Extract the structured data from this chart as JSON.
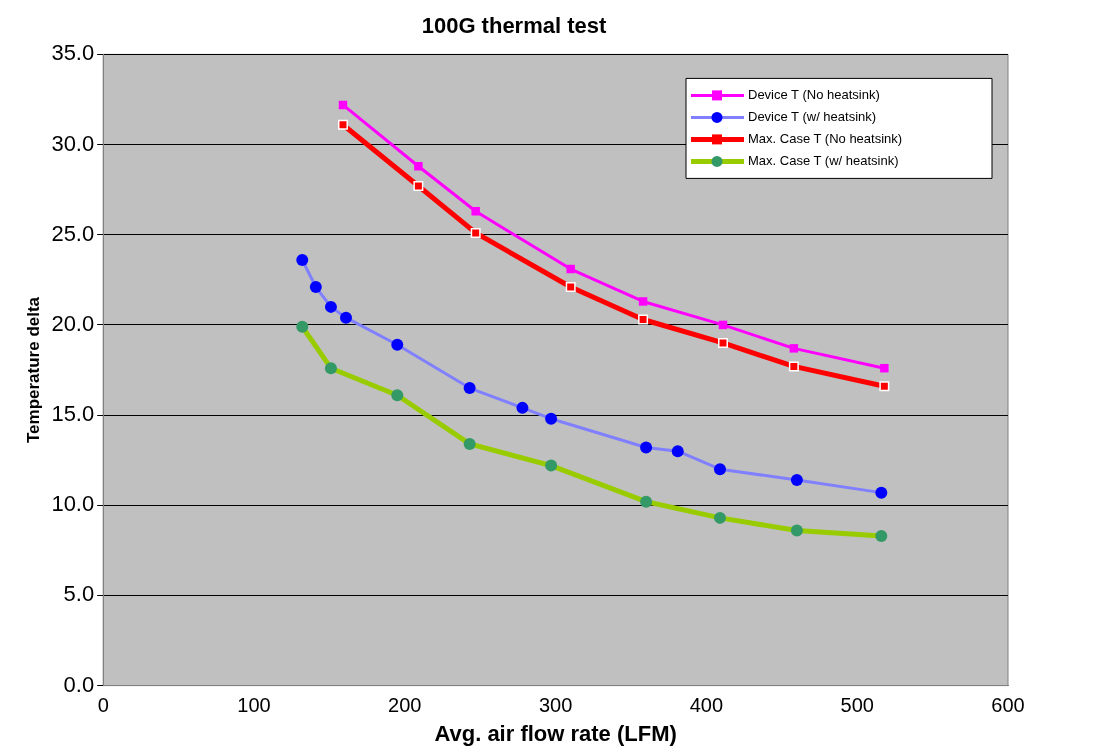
{
  "chart_data": {
    "type": "line",
    "title": "100G thermal test",
    "xlabel": "Avg. air flow rate (LFM)",
    "ylabel": "Temperature delta",
    "xlim": [
      0,
      600
    ],
    "xticks": [
      0,
      100,
      200,
      300,
      400,
      500,
      600
    ],
    "ylim": [
      0,
      35
    ],
    "yticks": [
      {
        "value": 0,
        "label": "0.0"
      },
      {
        "value": 5,
        "label": "5.0"
      },
      {
        "value": 10,
        "label": "10.0"
      },
      {
        "value": 15,
        "label": "15.0"
      },
      {
        "value": 20,
        "label": "20.0"
      },
      {
        "value": 25,
        "label": "25.0"
      },
      {
        "value": 30,
        "label": "30.0"
      },
      {
        "value": 35,
        "label": "35.0"
      }
    ],
    "grid": "y",
    "legend": "top right",
    "line_style": "solid",
    "series": [
      {
        "name": "Device T (No heatsink)",
        "color": "#ff00ff",
        "marker": "square",
        "x": [
          159,
          209,
          247,
          310,
          358,
          411,
          458,
          518
        ],
        "values": [
          32.2,
          28.8,
          26.3,
          23.1,
          21.3,
          20.0,
          18.7,
          17.6
        ]
      },
      {
        "name": "Device T (w/ heatsink)",
        "color": "#0000ff",
        "marker": "circle",
        "x": [
          132,
          141,
          151,
          161,
          195,
          243,
          278,
          297,
          360,
          381,
          409,
          460,
          516
        ],
        "values": [
          23.6,
          22.1,
          21.0,
          20.4,
          18.9,
          16.5,
          15.4,
          14.8,
          13.2,
          13.0,
          12.0,
          11.4,
          10.7
        ]
      },
      {
        "name": "Max. Case T (No heatsink)",
        "color": "#ff0000",
        "marker": "square",
        "x": [
          159,
          209,
          247,
          310,
          358,
          411,
          458,
          518
        ],
        "values": [
          31.1,
          27.7,
          25.1,
          22.1,
          20.3,
          19.0,
          17.7,
          16.6
        ]
      },
      {
        "name": "Max. Case T (w/ heatsink)",
        "color": "#339966",
        "marker": "circle",
        "x": [
          132,
          151,
          195,
          243,
          297,
          360,
          409,
          460,
          516
        ],
        "values": [
          19.9,
          17.6,
          16.1,
          13.4,
          12.2,
          10.2,
          9.3,
          8.6,
          8.3
        ]
      }
    ]
  }
}
